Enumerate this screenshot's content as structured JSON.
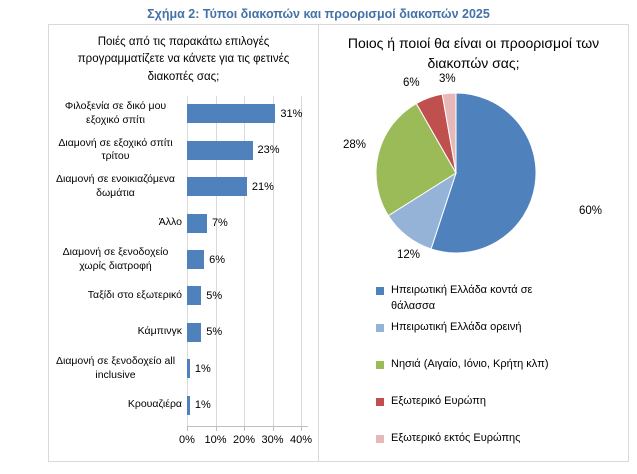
{
  "figure_title": "Σχήμα 2: Τύποι διακοπών και προορισμοί διακοπών 2025",
  "colors": {
    "figure_title": "#4472A8",
    "bar": "#4F81BD",
    "gridline": "#D9D9D9",
    "axis": "#BFBFBF",
    "panel_border": "#D9D9D9"
  },
  "chart_data": [
    {
      "type": "bar",
      "orientation": "horizontal",
      "title": "Ποιές από τις παρακάτω επιλογές προγραμματίζετε να κάνετε για τις φετινές διακοπές σας;",
      "categories": [
        "Φιλοξενία σε δικό μου εξοχικό σπίτι",
        "Διαμονή σε εξοχικό σπίτι τρίτου",
        "Διαμονή σε ενοικιαζόμενα δωμάτια",
        "Άλλο",
        "Διαμονή σε ξενοδοχείο χωρίς διατροφή",
        "Ταξίδι στο εξωτερικό",
        "Κάμπινγκ",
        "Διαμονή σε ξενοδοχείο all inclusive",
        "Κρουαζιέρα"
      ],
      "values": [
        31,
        23,
        21,
        7,
        6,
        5,
        5,
        1,
        1
      ],
      "unit": "%",
      "xlim": [
        0,
        40
      ],
      "x_ticks": [
        0,
        10,
        20,
        30,
        40
      ],
      "x_tick_labels": [
        "0%",
        "10%",
        "20%",
        "30%",
        "40%"
      ],
      "bar_color": "#4F81BD",
      "grid": true
    },
    {
      "type": "pie",
      "title": "Ποιος ή ποιοί θα είναι οι προορισμοί των διακοπών σας;",
      "unit": "%",
      "start_angle_deg": 0,
      "direction": "clockwise",
      "legend_position": "bottom-left",
      "slices": [
        {
          "label": "Ηπειρωτική Ελλάδα κοντά σε θάλασσα",
          "value": 60,
          "color": "#4F81BD"
        },
        {
          "label": "Ηπειρωτική Ελλάδα ορεινή",
          "value": 12,
          "color": "#95B3D7"
        },
        {
          "label": "Νησιά (Αιγαίο, Ιόνιο, Κρήτη κλπ)",
          "value": 28,
          "color": "#9BBB59"
        },
        {
          "label": "Εξωτερικό Ευρώπη",
          "value": 6,
          "color": "#C0504D"
        },
        {
          "label": "Εξωτερικό εκτός Ευρώπης",
          "value": 3,
          "color": "#E6B9B8"
        }
      ]
    }
  ]
}
